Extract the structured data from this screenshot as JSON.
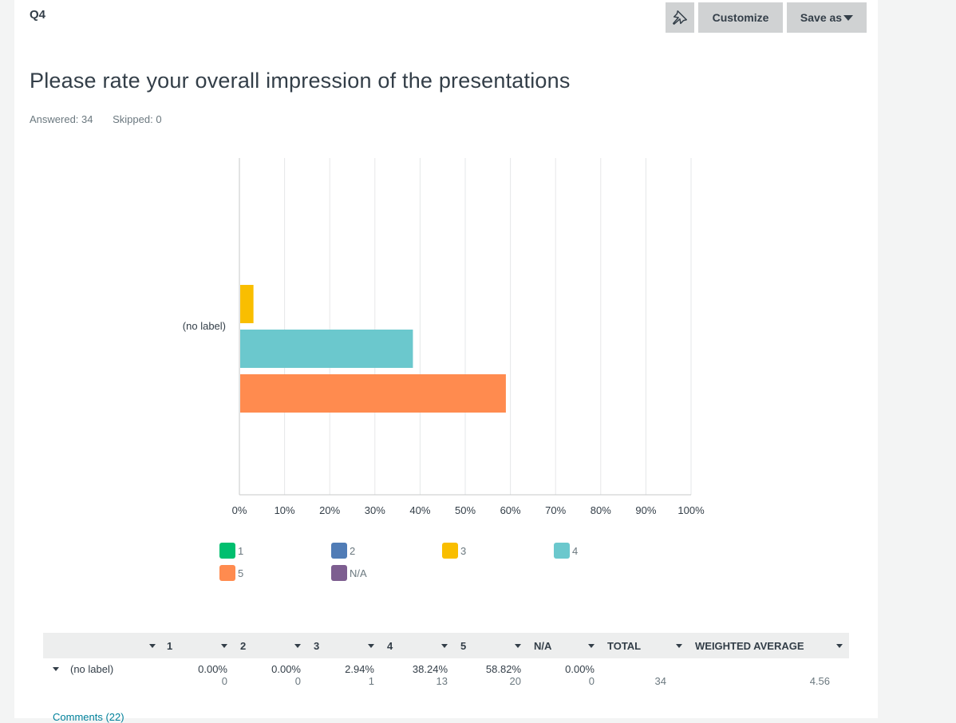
{
  "question": {
    "id": "Q4",
    "title": "Please rate your overall impression of the presentations",
    "answered": "Answered: 34",
    "skipped": "Skipped: 0"
  },
  "toolbar": {
    "pin_icon": "pin-icon",
    "customize_label": "Customize",
    "save_label": "Save as"
  },
  "chart_data": {
    "type": "bar",
    "orientation": "horizontal",
    "categories": [
      "(no label)"
    ],
    "series": [
      {
        "name": "1",
        "values": [
          0.0
        ],
        "color": "#00bf6f"
      },
      {
        "name": "2",
        "values": [
          0.0
        ],
        "color": "#507cb6"
      },
      {
        "name": "3",
        "values": [
          2.94
        ],
        "color": "#f9be00"
      },
      {
        "name": "4",
        "values": [
          38.24
        ],
        "color": "#6bc8cd"
      },
      {
        "name": "5",
        "values": [
          58.82
        ],
        "color": "#ff8b4f"
      },
      {
        "name": "N/A",
        "values": [
          0.0
        ],
        "color": "#7d5e90"
      }
    ],
    "xlim": [
      0,
      100
    ],
    "x_ticks": [
      "0%",
      "10%",
      "20%",
      "30%",
      "40%",
      "50%",
      "60%",
      "70%",
      "80%",
      "90%",
      "100%"
    ],
    "grid": true,
    "legend_position": "bottom"
  },
  "table": {
    "headers": [
      "",
      "1",
      "2",
      "3",
      "4",
      "5",
      "N/A",
      "TOTAL",
      "WEIGHTED AVERAGE"
    ],
    "rows": [
      {
        "label": "(no label)",
        "cells": [
          {
            "pct": "0.00%",
            "count": "0"
          },
          {
            "pct": "0.00%",
            "count": "0"
          },
          {
            "pct": "2.94%",
            "count": "1"
          },
          {
            "pct": "38.24%",
            "count": "13"
          },
          {
            "pct": "58.82%",
            "count": "20"
          },
          {
            "pct": "0.00%",
            "count": "0"
          }
        ],
        "total": "34",
        "weighted_average": "4.56"
      }
    ]
  },
  "comments_link": "Comments (22)"
}
